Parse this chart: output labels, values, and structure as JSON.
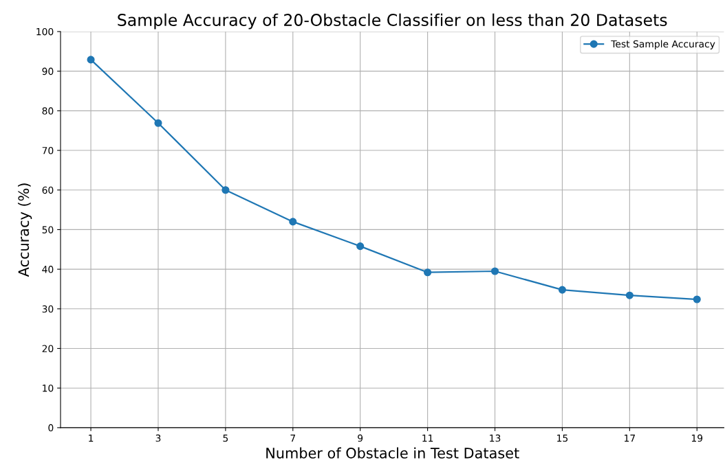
{
  "chart_data": {
    "type": "line",
    "title": "Sample Accuracy of 20-Obstacle Classifier on less than 20 Datasets",
    "xlabel": "Number of Obstacle in Test Dataset",
    "ylabel": "Accuracy (%)",
    "x": [
      1,
      3,
      5,
      7,
      9,
      11,
      13,
      15,
      17,
      19
    ],
    "series": [
      {
        "name": "Test Sample Accuracy",
        "color": "#1f77b4",
        "values": [
          92.9,
          76.9,
          60.0,
          52.0,
          45.8,
          39.2,
          39.5,
          34.8,
          33.4,
          32.4
        ]
      }
    ],
    "xlim": [
      0.1,
      19.8
    ],
    "xticks": [
      1,
      3,
      5,
      7,
      9,
      11,
      13,
      15,
      17,
      19
    ],
    "ylim": [
      0,
      100
    ],
    "yticks": [
      0,
      10,
      20,
      30,
      40,
      50,
      60,
      70,
      80,
      90,
      100
    ],
    "grid": true,
    "legend": "top right",
    "marker": "circle",
    "line_style": "solid"
  }
}
